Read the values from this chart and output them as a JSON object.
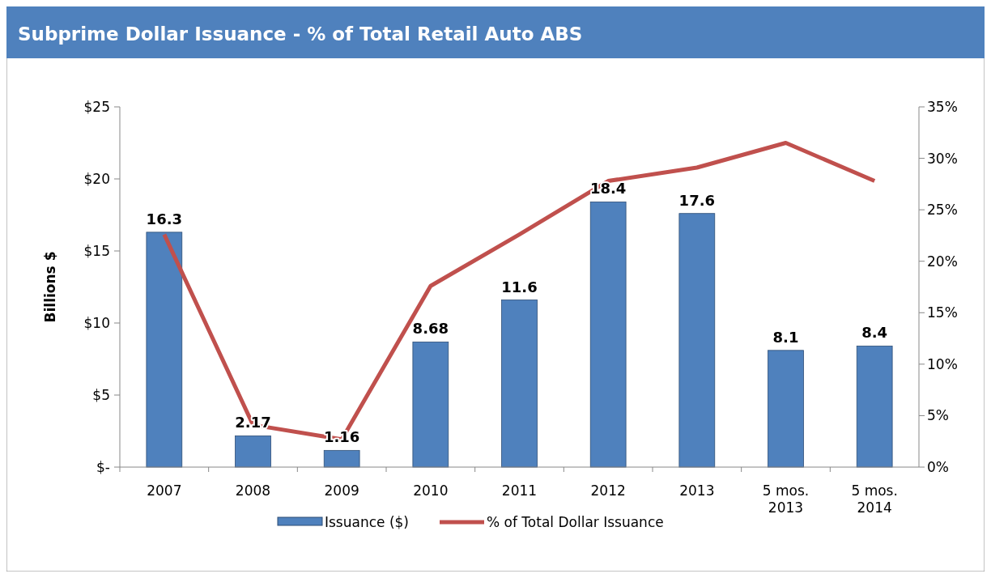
{
  "chart_data": {
    "type": "bar",
    "title": "Subprime Dollar Issuance - % of Total Retail Auto ABS",
    "ylabel": "Billions $",
    "categories": [
      "2007",
      "2008",
      "2009",
      "2010",
      "2011",
      "2012",
      "2013",
      "5 mos. 2013",
      "5 mos. 2014"
    ],
    "series": [
      {
        "name": "Issuance ($)",
        "color": "#4f81bd",
        "values": [
          16.3,
          2.17,
          1.16,
          8.68,
          11.6,
          18.4,
          17.6,
          8.1,
          8.4
        ],
        "value_labels": [
          "16.3",
          "2.17",
          "1.16",
          "8.68",
          "11.6",
          "18.4",
          "17.6",
          "8.1",
          "8.4"
        ]
      },
      {
        "name": "% of Total Dollar Issuance",
        "type": "line",
        "axis": "y2",
        "color": "#c0504d",
        "values": [
          22.6,
          4.1,
          2.7,
          17.6,
          22.6,
          27.8,
          29.1,
          31.5,
          27.8
        ]
      }
    ],
    "ylim": [
      0,
      25
    ],
    "yticks": [
      {
        "value": 0,
        "label": "$-"
      },
      {
        "value": 5,
        "label": "$5"
      },
      {
        "value": 10,
        "label": "$10"
      },
      {
        "value": 15,
        "label": "$15"
      },
      {
        "value": 20,
        "label": "$20"
      },
      {
        "value": 25,
        "label": "$25"
      }
    ],
    "y2lim": [
      0,
      35
    ],
    "y2ticks": [
      {
        "value": 0,
        "label": "0%"
      },
      {
        "value": 5,
        "label": "5%"
      },
      {
        "value": 10,
        "label": "10%"
      },
      {
        "value": 15,
        "label": "15%"
      },
      {
        "value": 20,
        "label": "20%"
      },
      {
        "value": 25,
        "label": "25%"
      },
      {
        "value": 30,
        "label": "30%"
      },
      {
        "value": 35,
        "label": "35%"
      }
    ],
    "grid": false,
    "legend": "bottom",
    "marker": "none",
    "line_style": "solid"
  }
}
